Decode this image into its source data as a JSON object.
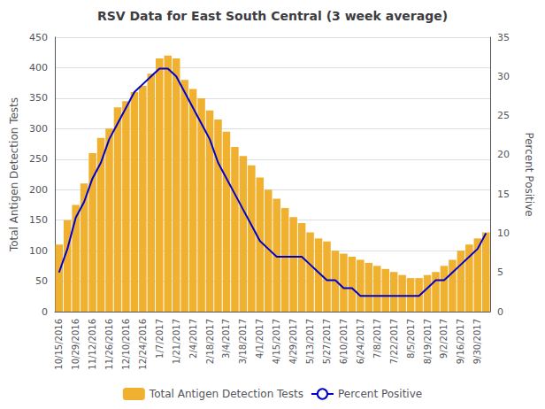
{
  "chart_data": {
    "type": "bar",
    "title": "RSV Data for East South Central (3 week average)",
    "ylabel": "Total Antigen Detection Tests",
    "y2label": "Percent Positive",
    "categories": [
      "10/15/2016",
      null,
      "10/29/2016",
      null,
      "11/12/2016",
      null,
      "11/26/2016",
      null,
      "12/10/2016",
      null,
      "12/24/2016",
      null,
      "1/7/2017",
      null,
      "1/21/2017",
      null,
      "2/4/2017",
      null,
      "2/18/2017",
      null,
      "3/4/2017",
      null,
      "3/18/2017",
      null,
      "4/1/2017",
      null,
      "4/15/2017",
      null,
      "4/29/2017",
      null,
      "5/13/2017",
      null,
      "5/27/2017",
      null,
      "6/10/2017",
      null,
      "6/24/2017",
      null,
      "7/8/2017",
      null,
      "7/22/2017",
      null,
      "8/5/2017",
      null,
      "8/19/2017",
      null,
      "9/2/2017",
      null,
      "9/16/2017",
      null,
      "9/30/2017",
      null
    ],
    "series": [
      {
        "name": "Total Antigen Detection Tests",
        "type": "bar",
        "color": "#f0b030",
        "values": [
          110,
          150,
          175,
          210,
          260,
          285,
          300,
          335,
          345,
          360,
          370,
          390,
          415,
          420,
          415,
          380,
          365,
          350,
          330,
          315,
          295,
          270,
          255,
          240,
          220,
          200,
          185,
          170,
          155,
          145,
          130,
          120,
          115,
          100,
          95,
          90,
          85,
          80,
          75,
          70,
          65,
          60,
          55,
          55,
          60,
          65,
          75,
          85,
          100,
          110,
          120,
          130
        ]
      },
      {
        "name": "Percent Positive",
        "type": "line",
        "color": "#0000cc",
        "axis": "y2",
        "values": [
          5,
          8,
          12,
          14,
          17,
          19,
          22,
          24,
          26,
          28,
          29,
          30,
          31,
          31,
          30,
          28,
          26,
          24,
          22,
          19,
          17,
          15,
          13,
          11,
          9,
          8,
          7,
          7,
          7,
          7,
          6,
          5,
          4,
          4,
          3,
          3,
          2,
          2,
          2,
          2,
          2,
          2,
          2,
          2,
          3,
          4,
          4,
          5,
          6,
          7,
          8,
          10
        ]
      }
    ],
    "ylim": [
      0,
      450
    ],
    "yticks": [
      0,
      50,
      100,
      150,
      200,
      250,
      300,
      350,
      400,
      450
    ],
    "y2lim": [
      0,
      35
    ],
    "y2ticks": [
      0,
      5,
      10,
      15,
      20,
      25,
      30,
      35
    ],
    "grid": true,
    "legend": "bottom"
  }
}
